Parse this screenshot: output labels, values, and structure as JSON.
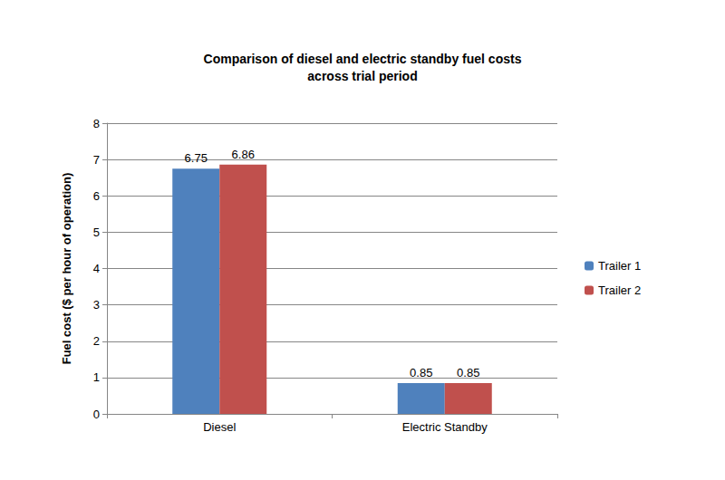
{
  "chart_data": {
    "type": "bar",
    "title": "Comparison of diesel and electric standby fuel costs\nacross trial period",
    "y_label": "Fuel cost ($ per hour of operation)",
    "categories": [
      "Diesel",
      "Electric Standby"
    ],
    "series": [
      {
        "name": "Trailer 1",
        "color": "#4f81bd",
        "values": [
          6.75,
          0.85
        ]
      },
      {
        "name": "Trailer 2",
        "color": "#c0504d",
        "values": [
          6.86,
          0.85
        ]
      }
    ],
    "ylim": [
      0,
      8
    ],
    "yticks": [
      0,
      1,
      2,
      3,
      4,
      5,
      6,
      7,
      8
    ],
    "grid": true,
    "legend": "right",
    "data_labels": true
  }
}
